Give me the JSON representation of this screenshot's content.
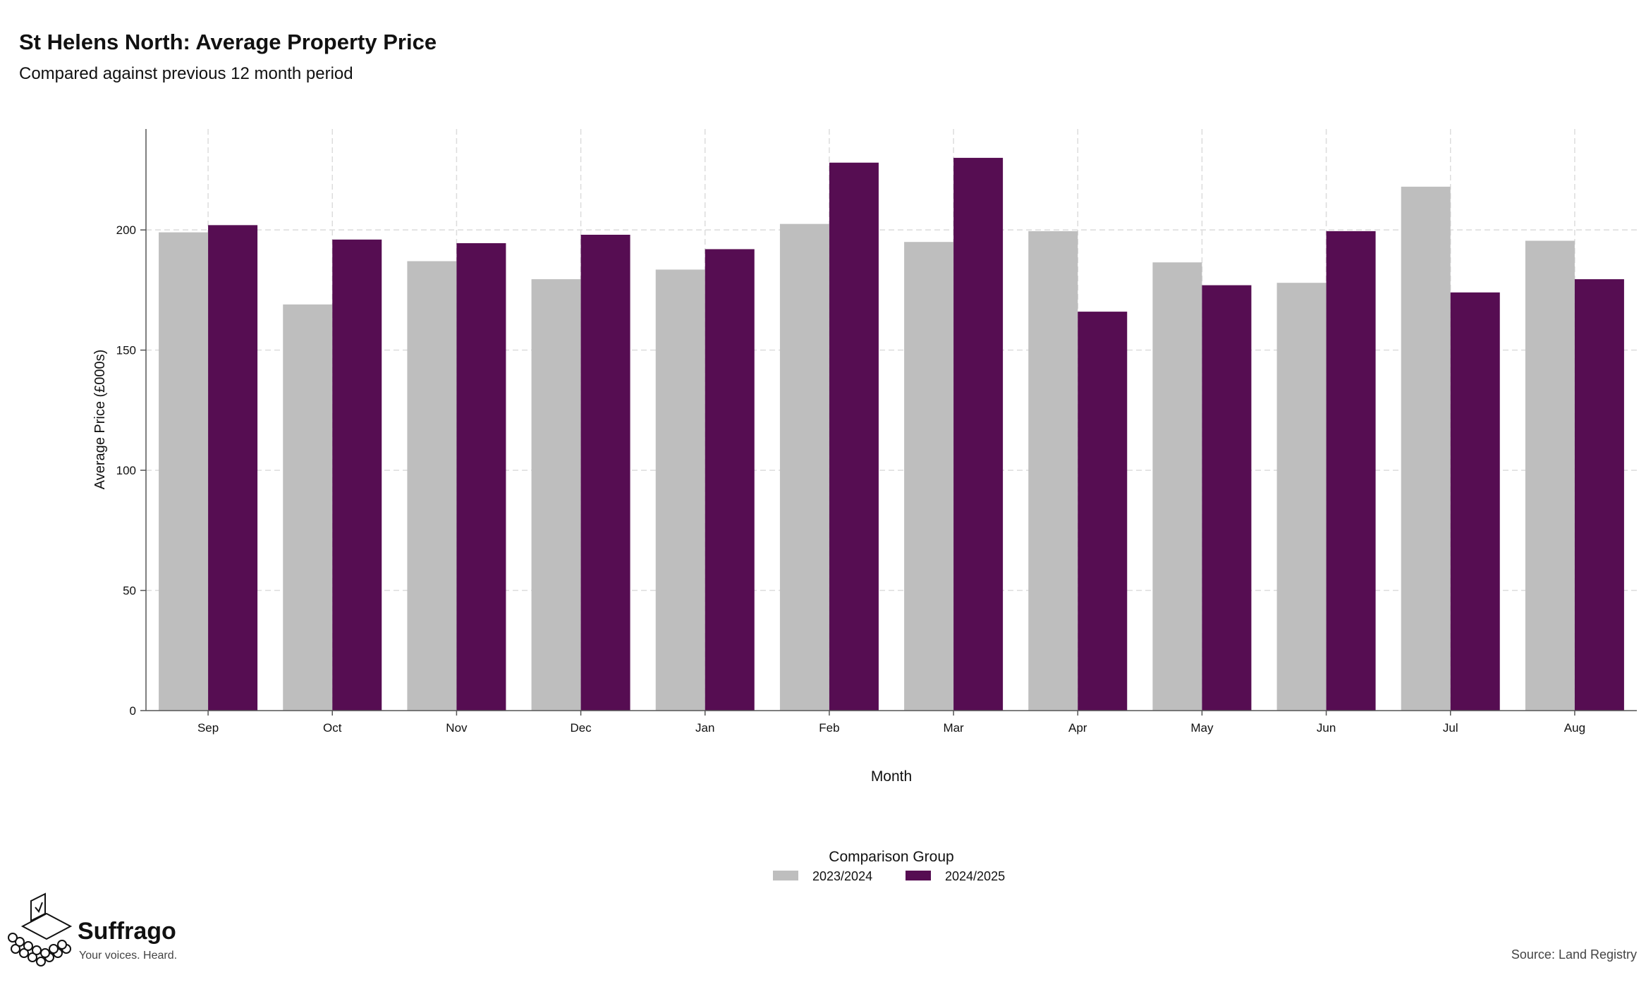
{
  "chart_data": {
    "type": "bar",
    "title": "St Helens North: Average Property Price",
    "subtitle": "Compared against previous 12 month period",
    "xlabel": "Month",
    "ylabel": "Average Price (£000s)",
    "ylim": [
      0,
      242
    ],
    "yticks": [
      0,
      50,
      100,
      150,
      200
    ],
    "grid": true,
    "legend_title": "Comparison Group",
    "legend_position": "bottom",
    "categories": [
      "Sep",
      "Oct",
      "Nov",
      "Dec",
      "Jan",
      "Feb",
      "Mar",
      "Apr",
      "May",
      "Jun",
      "Jul",
      "Aug"
    ],
    "series": [
      {
        "name": "2023/2024",
        "color": "#bebebe",
        "values": [
          199,
          169,
          187,
          179.5,
          183.5,
          202.5,
          195,
          199.5,
          186.5,
          178,
          218,
          195.5
        ]
      },
      {
        "name": "2024/2025",
        "color": "#560d52",
        "values": [
          202,
          196,
          194.5,
          198,
          192,
          228,
          230,
          166,
          177,
          199.5,
          174,
          179.5
        ]
      }
    ],
    "source": "Source: Land Registry"
  },
  "branding": {
    "name": "Suffrago",
    "tagline": "Your voices. Heard.",
    "icon": "ballot-box-icon"
  }
}
